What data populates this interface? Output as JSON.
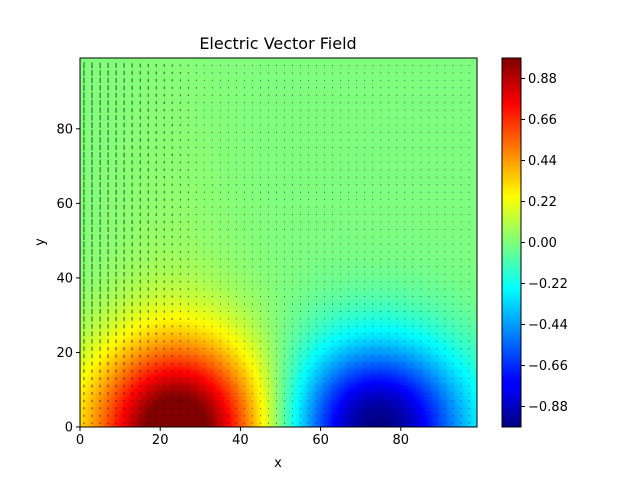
{
  "chart_data": {
    "type": "heatmap",
    "title": "Electric Vector Field",
    "xlabel": "x",
    "ylabel": "y",
    "xlim": [
      0,
      99
    ],
    "ylim": [
      0,
      99
    ],
    "xticks": [
      0,
      20,
      40,
      60,
      80
    ],
    "yticks": [
      0,
      20,
      40,
      60,
      80
    ],
    "grid": false,
    "colormap": "jet",
    "colorbar": {
      "range": [
        -0.99,
        0.99
      ],
      "ticks": [
        0.88,
        0.66,
        0.44,
        0.22,
        0.0,
        -0.22,
        -0.44,
        -0.66,
        -0.88
      ],
      "tick_labels": [
        "0.88",
        "0.66",
        "0.44",
        "0.22",
        "0.00",
        "−0.22",
        "−0.44",
        "−0.66",
        "−0.88"
      ]
    },
    "sources": [
      {
        "x": 25,
        "y": 0,
        "value": 0.99
      },
      {
        "x": 74,
        "y": 0,
        "value": -0.99
      }
    ],
    "quiver": {
      "color": "#000000",
      "grid_step": 2
    }
  }
}
